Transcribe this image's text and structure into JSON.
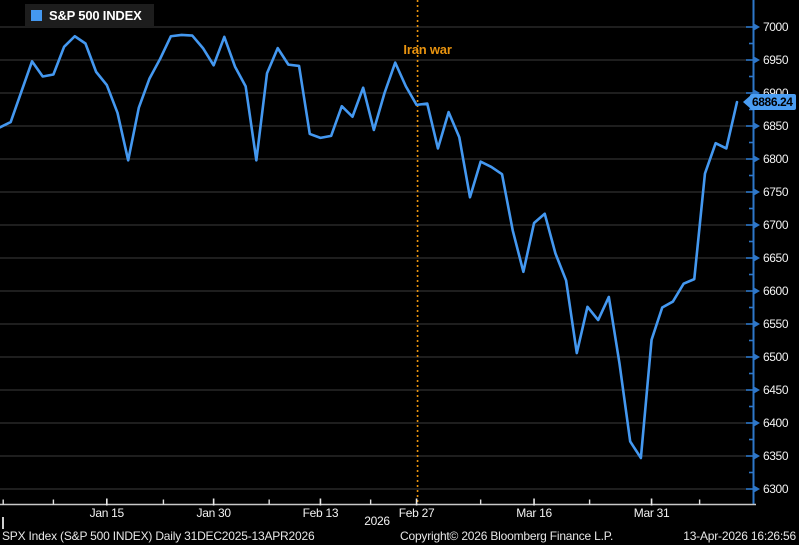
{
  "legend": {
    "label": "S&P 500 INDEX"
  },
  "price_badge": {
    "value": "6886.24"
  },
  "footer": {
    "left": "SPX Index (S&P 500 INDEX) Daily 31DEC2025-13APR2026",
    "center": "Copyright© 2026 Bloomberg Finance L.P.",
    "right": "13-Apr-2026 16:26:56",
    "year_label": "2026"
  },
  "colors": {
    "background": "#000000",
    "series_blue": "#4498f0",
    "y_axis_blue": "#2e77c9",
    "x_axis_gray": "#c8c8c8",
    "grid_gray": "#3b3b3b",
    "annotation_orange": "#e8930f",
    "badge_blue": "#4a9df2",
    "label_white": "#f2f2f2"
  },
  "chart_data": {
    "type": "line",
    "title": "S&P 500 INDEX",
    "subtitle_range": "Daily 31DEC2025-13APR2026",
    "grid": true,
    "legend_position": "top-left",
    "y_axis": {
      "side": "right",
      "min": 6300,
      "max": 7000,
      "major_step": 50,
      "minor_step": 25,
      "tick_labels": [
        "7000",
        "6950",
        "6900",
        "6850",
        "6800",
        "6750",
        "6700",
        "6650",
        "6600",
        "6550",
        "6500",
        "6450",
        "6400",
        "6350",
        "6300"
      ]
    },
    "x_ticks": {
      "major": [
        {
          "i": 10,
          "label": "Jan 15"
        },
        {
          "i": 20,
          "label": "Jan 30"
        },
        {
          "i": 30,
          "label": "Feb 13"
        },
        {
          "i": 39,
          "label": "Feb 27"
        },
        {
          "i": 50,
          "label": "Mar 16"
        },
        {
          "i": 61,
          "label": "Mar 31"
        }
      ],
      "minor_i": [
        0.3,
        5,
        15.3,
        25.2,
        34.7,
        45,
        55.2,
        65.5
      ]
    },
    "annotation": {
      "label": "Iran war",
      "i": 39,
      "style": "dotted-vertical-line"
    },
    "series": [
      {
        "name": "S&P 500 INDEX",
        "color": "#4498f0",
        "values": [
          6848,
          6856,
          6902,
          6948,
          6925,
          6928,
          6970,
          6986,
          6975,
          6932,
          6912,
          6870,
          6798,
          6878,
          6922,
          6952,
          6986,
          6988,
          6987,
          6968,
          6942,
          6985,
          6940,
          6910,
          6798,
          6930,
          6968,
          6943,
          6941,
          6838,
          6832,
          6835,
          6880,
          6864,
          6908,
          6844,
          6900,
          6946,
          6910,
          6882,
          6884,
          6816,
          6871,
          6833,
          6742,
          6796,
          6788,
          6777,
          6692,
          6629,
          6703,
          6717,
          6657,
          6616,
          6506,
          6576,
          6556,
          6591,
          6490,
          6372,
          6347,
          6526,
          6575,
          6584,
          6611,
          6618,
          6778,
          6824,
          6816,
          6886.24
        ]
      }
    ],
    "last_value": 6886.24
  }
}
